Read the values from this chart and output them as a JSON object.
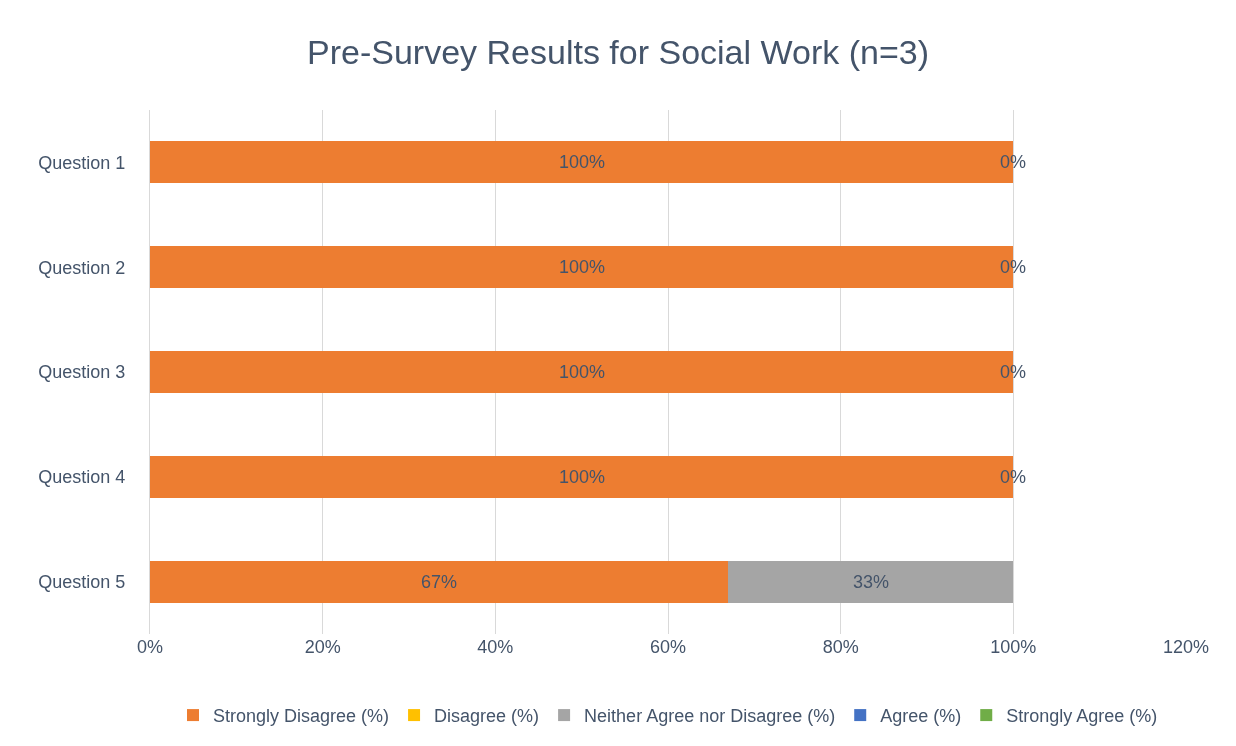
{
  "chart_data": {
    "type": "bar",
    "orientation": "horizontal",
    "stacked": true,
    "title": "Pre-Survey Results for Social Work (n=3)",
    "categories": [
      "Question 1",
      "Question 2",
      "Question 3",
      "Question 4",
      "Question 5"
    ],
    "series": [
      {
        "name": "Strongly Disagree (%)",
        "color": "#ed7d31",
        "values": [
          100,
          100,
          100,
          100,
          67
        ],
        "value_labels": [
          "100%",
          "100%",
          "100%",
          "100%",
          "67%"
        ]
      },
      {
        "name": "Disagree (%)",
        "color": "#ffc000",
        "values": [
          0,
          0,
          0,
          0,
          0
        ]
      },
      {
        "name": "Neither Agree nor Disagree (%)",
        "color": "#a5a5a5",
        "values": [
          0,
          0,
          0,
          0,
          33
        ],
        "value_labels": [
          "0%",
          "0%",
          "0%",
          "0%",
          "33%"
        ]
      },
      {
        "name": "Agree (%)",
        "color": "#4472c4",
        "values": [
          0,
          0,
          0,
          0,
          0
        ]
      },
      {
        "name": "Strongly Agree (%)",
        "color": "#70ad47",
        "values": [
          0,
          0,
          0,
          0,
          0
        ]
      }
    ],
    "xlim": [
      0,
      120
    ],
    "xticks": [
      {
        "value": 0,
        "label": "0%"
      },
      {
        "value": 20,
        "label": "20%"
      },
      {
        "value": 40,
        "label": "40%"
      },
      {
        "value": 60,
        "label": "60%"
      },
      {
        "value": 80,
        "label": "80%"
      },
      {
        "value": 100,
        "label": "100%"
      },
      {
        "value": 120,
        "label": "120%"
      }
    ],
    "grid": "x",
    "legend": "bottom"
  }
}
